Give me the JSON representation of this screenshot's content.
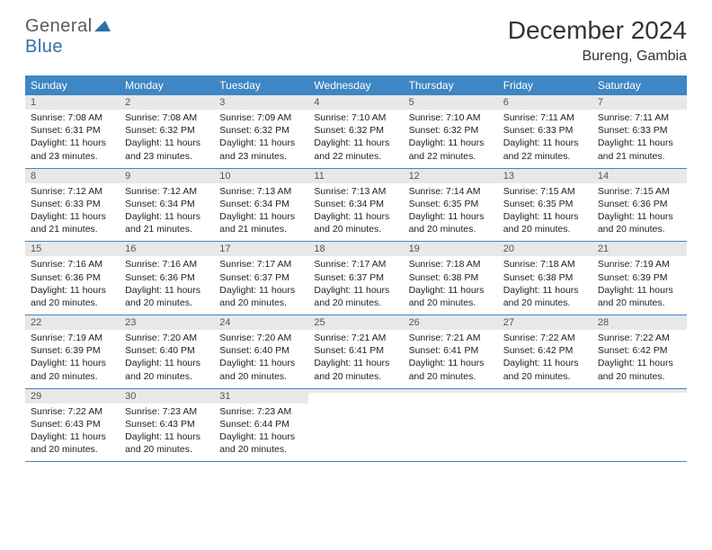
{
  "logo": {
    "text1": "General",
    "text2": "Blue",
    "shape_color": "#2f6fa8"
  },
  "title": "December 2024",
  "location": "Bureng, Gambia",
  "colors": {
    "header_bg": "#3e86c4",
    "header_text": "#ffffff",
    "daynum_bg": "#e8e8e8",
    "daynum_text": "#555555",
    "rule": "#3e86c4"
  },
  "day_names": [
    "Sunday",
    "Monday",
    "Tuesday",
    "Wednesday",
    "Thursday",
    "Friday",
    "Saturday"
  ],
  "weeks": [
    [
      {
        "n": "1",
        "sr": "Sunrise: 7:08 AM",
        "ss": "Sunset: 6:31 PM",
        "d1": "Daylight: 11 hours",
        "d2": "and 23 minutes."
      },
      {
        "n": "2",
        "sr": "Sunrise: 7:08 AM",
        "ss": "Sunset: 6:32 PM",
        "d1": "Daylight: 11 hours",
        "d2": "and 23 minutes."
      },
      {
        "n": "3",
        "sr": "Sunrise: 7:09 AM",
        "ss": "Sunset: 6:32 PM",
        "d1": "Daylight: 11 hours",
        "d2": "and 23 minutes."
      },
      {
        "n": "4",
        "sr": "Sunrise: 7:10 AM",
        "ss": "Sunset: 6:32 PM",
        "d1": "Daylight: 11 hours",
        "d2": "and 22 minutes."
      },
      {
        "n": "5",
        "sr": "Sunrise: 7:10 AM",
        "ss": "Sunset: 6:32 PM",
        "d1": "Daylight: 11 hours",
        "d2": "and 22 minutes."
      },
      {
        "n": "6",
        "sr": "Sunrise: 7:11 AM",
        "ss": "Sunset: 6:33 PM",
        "d1": "Daylight: 11 hours",
        "d2": "and 22 minutes."
      },
      {
        "n": "7",
        "sr": "Sunrise: 7:11 AM",
        "ss": "Sunset: 6:33 PM",
        "d1": "Daylight: 11 hours",
        "d2": "and 21 minutes."
      }
    ],
    [
      {
        "n": "8",
        "sr": "Sunrise: 7:12 AM",
        "ss": "Sunset: 6:33 PM",
        "d1": "Daylight: 11 hours",
        "d2": "and 21 minutes."
      },
      {
        "n": "9",
        "sr": "Sunrise: 7:12 AM",
        "ss": "Sunset: 6:34 PM",
        "d1": "Daylight: 11 hours",
        "d2": "and 21 minutes."
      },
      {
        "n": "10",
        "sr": "Sunrise: 7:13 AM",
        "ss": "Sunset: 6:34 PM",
        "d1": "Daylight: 11 hours",
        "d2": "and 21 minutes."
      },
      {
        "n": "11",
        "sr": "Sunrise: 7:13 AM",
        "ss": "Sunset: 6:34 PM",
        "d1": "Daylight: 11 hours",
        "d2": "and 20 minutes."
      },
      {
        "n": "12",
        "sr": "Sunrise: 7:14 AM",
        "ss": "Sunset: 6:35 PM",
        "d1": "Daylight: 11 hours",
        "d2": "and 20 minutes."
      },
      {
        "n": "13",
        "sr": "Sunrise: 7:15 AM",
        "ss": "Sunset: 6:35 PM",
        "d1": "Daylight: 11 hours",
        "d2": "and 20 minutes."
      },
      {
        "n": "14",
        "sr": "Sunrise: 7:15 AM",
        "ss": "Sunset: 6:36 PM",
        "d1": "Daylight: 11 hours",
        "d2": "and 20 minutes."
      }
    ],
    [
      {
        "n": "15",
        "sr": "Sunrise: 7:16 AM",
        "ss": "Sunset: 6:36 PM",
        "d1": "Daylight: 11 hours",
        "d2": "and 20 minutes."
      },
      {
        "n": "16",
        "sr": "Sunrise: 7:16 AM",
        "ss": "Sunset: 6:36 PM",
        "d1": "Daylight: 11 hours",
        "d2": "and 20 minutes."
      },
      {
        "n": "17",
        "sr": "Sunrise: 7:17 AM",
        "ss": "Sunset: 6:37 PM",
        "d1": "Daylight: 11 hours",
        "d2": "and 20 minutes."
      },
      {
        "n": "18",
        "sr": "Sunrise: 7:17 AM",
        "ss": "Sunset: 6:37 PM",
        "d1": "Daylight: 11 hours",
        "d2": "and 20 minutes."
      },
      {
        "n": "19",
        "sr": "Sunrise: 7:18 AM",
        "ss": "Sunset: 6:38 PM",
        "d1": "Daylight: 11 hours",
        "d2": "and 20 minutes."
      },
      {
        "n": "20",
        "sr": "Sunrise: 7:18 AM",
        "ss": "Sunset: 6:38 PM",
        "d1": "Daylight: 11 hours",
        "d2": "and 20 minutes."
      },
      {
        "n": "21",
        "sr": "Sunrise: 7:19 AM",
        "ss": "Sunset: 6:39 PM",
        "d1": "Daylight: 11 hours",
        "d2": "and 20 minutes."
      }
    ],
    [
      {
        "n": "22",
        "sr": "Sunrise: 7:19 AM",
        "ss": "Sunset: 6:39 PM",
        "d1": "Daylight: 11 hours",
        "d2": "and 20 minutes."
      },
      {
        "n": "23",
        "sr": "Sunrise: 7:20 AM",
        "ss": "Sunset: 6:40 PM",
        "d1": "Daylight: 11 hours",
        "d2": "and 20 minutes."
      },
      {
        "n": "24",
        "sr": "Sunrise: 7:20 AM",
        "ss": "Sunset: 6:40 PM",
        "d1": "Daylight: 11 hours",
        "d2": "and 20 minutes."
      },
      {
        "n": "25",
        "sr": "Sunrise: 7:21 AM",
        "ss": "Sunset: 6:41 PM",
        "d1": "Daylight: 11 hours",
        "d2": "and 20 minutes."
      },
      {
        "n": "26",
        "sr": "Sunrise: 7:21 AM",
        "ss": "Sunset: 6:41 PM",
        "d1": "Daylight: 11 hours",
        "d2": "and 20 minutes."
      },
      {
        "n": "27",
        "sr": "Sunrise: 7:22 AM",
        "ss": "Sunset: 6:42 PM",
        "d1": "Daylight: 11 hours",
        "d2": "and 20 minutes."
      },
      {
        "n": "28",
        "sr": "Sunrise: 7:22 AM",
        "ss": "Sunset: 6:42 PM",
        "d1": "Daylight: 11 hours",
        "d2": "and 20 minutes."
      }
    ],
    [
      {
        "n": "29",
        "sr": "Sunrise: 7:22 AM",
        "ss": "Sunset: 6:43 PM",
        "d1": "Daylight: 11 hours",
        "d2": "and 20 minutes."
      },
      {
        "n": "30",
        "sr": "Sunrise: 7:23 AM",
        "ss": "Sunset: 6:43 PM",
        "d1": "Daylight: 11 hours",
        "d2": "and 20 minutes."
      },
      {
        "n": "31",
        "sr": "Sunrise: 7:23 AM",
        "ss": "Sunset: 6:44 PM",
        "d1": "Daylight: 11 hours",
        "d2": "and 20 minutes."
      },
      {
        "empty": true
      },
      {
        "empty": true
      },
      {
        "empty": true
      },
      {
        "empty": true
      }
    ]
  ]
}
